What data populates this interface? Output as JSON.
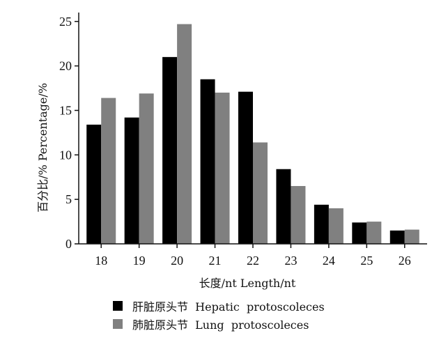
{
  "chart_data": {
    "type": "bar",
    "categories": [
      "18",
      "19",
      "20",
      "21",
      "22",
      "23",
      "24",
      "25",
      "26"
    ],
    "series": [
      {
        "name": "肝脏原头节  Hepatic  protoscoleces",
        "color": "#000000",
        "values": [
          13.4,
          14.2,
          21.0,
          18.5,
          17.1,
          8.4,
          4.4,
          2.4,
          1.5
        ]
      },
      {
        "name": "肺脏原头节  Lung  protoscoleces",
        "color": "#808080",
        "values": [
          16.4,
          16.9,
          24.7,
          17.0,
          11.4,
          6.5,
          4.0,
          2.5,
          1.6
        ]
      }
    ],
    "yticks": [
      "0",
      "5",
      "10",
      "15",
      "20",
      "25"
    ],
    "ylim": [
      0,
      26
    ],
    "xlabel": "长度/nt   Length/nt",
    "ylabel": "百分比/%   Percentage/%",
    "title": "",
    "grid": false,
    "legend_position": "bottom"
  }
}
